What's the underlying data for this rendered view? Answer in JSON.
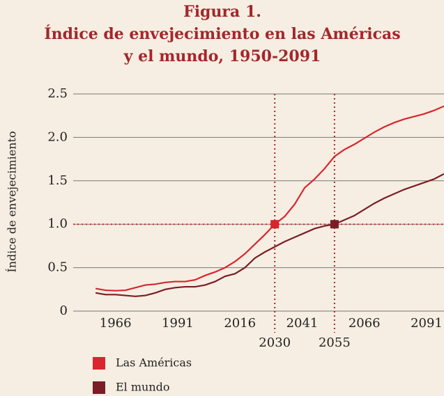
{
  "chart_data": {
    "type": "line",
    "label": "Figura 1.",
    "title": [
      "Índice de envejecimiento en las Américas",
      "y el mundo, 1950-2091"
    ],
    "y_label": "Índice de envejecimiento",
    "x": [
      1958,
      1962,
      1966,
      1970,
      1974,
      1978,
      1982,
      1986,
      1990,
      1994,
      1998,
      2002,
      2006,
      2010,
      2014,
      2018,
      2022,
      2026,
      2030,
      2034,
      2038,
      2042,
      2046,
      2050,
      2054,
      2058,
      2062,
      2066,
      2070,
      2074,
      2078,
      2082,
      2086,
      2090,
      2094,
      2098
    ],
    "series": [
      {
        "name": "Las Américas",
        "color": "#d7262e",
        "values": [
          0.26,
          0.24,
          0.235,
          0.24,
          0.27,
          0.3,
          0.31,
          0.33,
          0.34,
          0.34,
          0.36,
          0.41,
          0.45,
          0.5,
          0.57,
          0.66,
          0.77,
          0.88,
          1.0,
          1.09,
          1.23,
          1.42,
          1.52,
          1.64,
          1.78,
          1.86,
          1.92,
          1.99,
          2.06,
          2.12,
          2.17,
          2.21,
          2.24,
          2.27,
          2.31,
          2.36
        ]
      },
      {
        "name": "El mundo",
        "color": "#7a1d26",
        "values": [
          0.21,
          0.19,
          0.19,
          0.18,
          0.17,
          0.18,
          0.21,
          0.25,
          0.27,
          0.28,
          0.28,
          0.3,
          0.34,
          0.4,
          0.43,
          0.5,
          0.61,
          0.68,
          0.74,
          0.8,
          0.85,
          0.9,
          0.95,
          0.98,
          1.0,
          1.05,
          1.1,
          1.17,
          1.24,
          1.3,
          1.35,
          1.4,
          1.44,
          1.48,
          1.52,
          1.58
        ]
      }
    ],
    "markers": [
      {
        "x": 2030,
        "y": 1.0,
        "color": "#d7262e"
      },
      {
        "x": 2054,
        "y": 1.0,
        "color": "#7a1d26"
      }
    ],
    "reference_x": [
      2030,
      2054
    ],
    "reference_x_labels": [
      "2030",
      "2055"
    ],
    "reference_y": 1.0,
    "xlim": [
      1949,
      2098
    ],
    "xticks": [
      1966,
      1991,
      2016,
      2041,
      2066,
      2091
    ],
    "ylim": [
      0,
      2.5
    ],
    "yticks": [
      {
        "value": 0,
        "label": "0"
      },
      {
        "value": 0.5,
        "label": "0.5"
      },
      {
        "value": 1.0,
        "label": "1.0"
      },
      {
        "value": 1.5,
        "label": "1.5"
      },
      {
        "value": 2.0,
        "label": "2.0"
      },
      {
        "value": 2.5,
        "label": "2.5"
      }
    ],
    "grid": true
  }
}
